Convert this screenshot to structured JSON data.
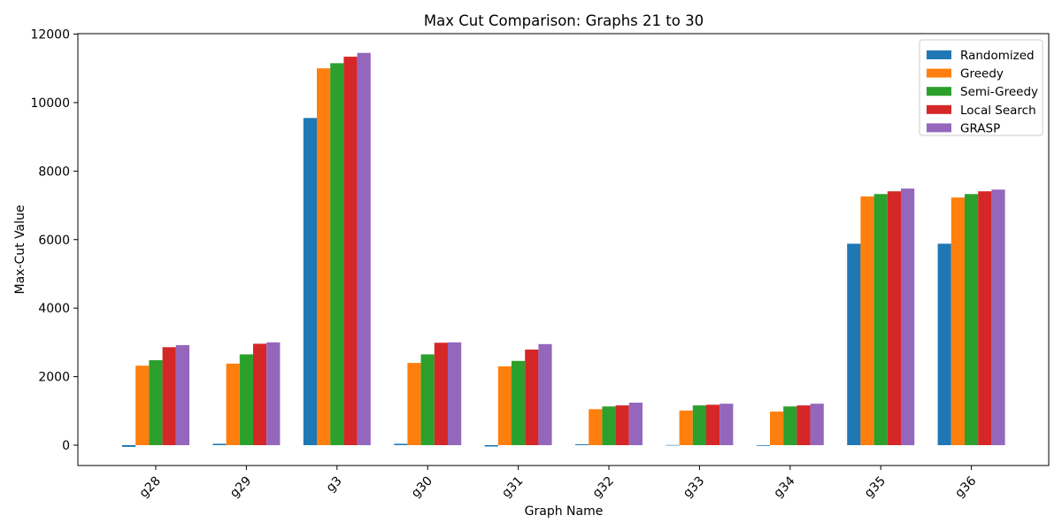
{
  "chart_data": {
    "type": "bar",
    "title": "Max Cut Comparison: Graphs 21 to 30",
    "xlabel": "Graph Name",
    "ylabel": "Max-Cut Value",
    "categories": [
      "g28",
      "g29",
      "g3",
      "g30",
      "g31",
      "g32",
      "g33",
      "g34",
      "g35",
      "g36"
    ],
    "ylim": [
      -600,
      12000
    ],
    "yticks": [
      0,
      2000,
      4000,
      6000,
      8000,
      10000,
      12000
    ],
    "grid": false,
    "legend_position": "top-right",
    "series": [
      {
        "name": "Randomized",
        "color": "#1f77b4",
        "values": [
          -50,
          40,
          9550,
          40,
          -40,
          25,
          5,
          -20,
          5880,
          5880
        ]
      },
      {
        "name": "Greedy",
        "color": "#ff7f0e",
        "values": [
          2320,
          2380,
          11000,
          2400,
          2300,
          1050,
          1010,
          980,
          7260,
          7230
        ]
      },
      {
        "name": "Semi-Greedy",
        "color": "#2ca02c",
        "values": [
          2480,
          2650,
          11150,
          2650,
          2460,
          1130,
          1160,
          1130,
          7330,
          7330
        ]
      },
      {
        "name": "Local Search",
        "color": "#d62728",
        "values": [
          2860,
          2960,
          11340,
          2990,
          2790,
          1160,
          1180,
          1160,
          7410,
          7410
        ]
      },
      {
        "name": "GRASP",
        "color": "#9467bd",
        "values": [
          2920,
          3000,
          11450,
          3000,
          2950,
          1240,
          1210,
          1210,
          7490,
          7460
        ]
      }
    ]
  }
}
